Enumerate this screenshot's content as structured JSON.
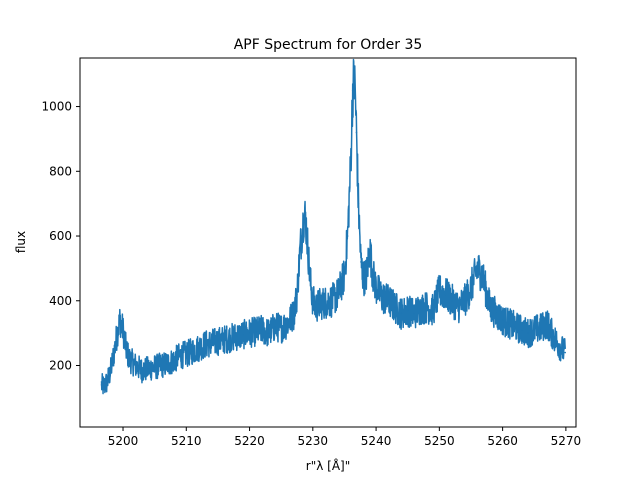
{
  "chart_data": {
    "type": "line",
    "title": "APF Spectrum for Order 35",
    "xlabel": "r\"λ [Å]\"",
    "ylabel": "flux",
    "xlim": [
      5193.2,
      5271.6
    ],
    "ylim": [
      10,
      1150
    ],
    "x_ticks": [
      5200,
      5210,
      5220,
      5230,
      5240,
      5250,
      5260,
      5270
    ],
    "x_tick_labels": [
      "5200",
      "5210",
      "5220",
      "5230",
      "5240",
      "5250",
      "5260",
      "5270"
    ],
    "y_ticks": [
      200,
      400,
      600,
      800,
      1000
    ],
    "y_tick_labels": [
      "200",
      "400",
      "600",
      "800",
      "1000"
    ],
    "grid": false,
    "line_color": "#1f77b4",
    "series": [
      {
        "x": [
          5196.6,
          5197.0,
          5197.5,
          5198.0,
          5198.5,
          5199.0,
          5199.5,
          5200.0,
          5200.5,
          5201.0,
          5202.0,
          5203.0,
          5204.0,
          5205.0,
          5206.0,
          5207.0,
          5208.0,
          5209.0,
          5210.0,
          5211.0,
          5212.0,
          5213.0,
          5214.0,
          5215.0,
          5216.0,
          5217.0,
          5218.0,
          5219.0,
          5220.0,
          5221.0,
          5222.0,
          5223.0,
          5224.0,
          5225.0,
          5226.0,
          5227.0,
          5227.5,
          5228.0,
          5228.5,
          5228.8,
          5229.0,
          5229.3,
          5229.6,
          5230.0,
          5230.5,
          5231.0,
          5232.0,
          5233.0,
          5234.0,
          5235.0,
          5235.5,
          5236.0,
          5236.3,
          5236.5,
          5236.7,
          5236.9,
          5237.2,
          5237.6,
          5238.0,
          5238.5,
          5239.0,
          5239.5,
          5240.0,
          5241.0,
          5242.0,
          5243.0,
          5244.0,
          5245.0,
          5246.0,
          5247.0,
          5248.0,
          5249.0,
          5250.0,
          5251.0,
          5252.0,
          5253.0,
          5254.0,
          5255.0,
          5256.0,
          5256.8,
          5257.5,
          5258.0,
          5259.0,
          5260.0,
          5261.0,
          5262.0,
          5263.0,
          5264.0,
          5265.0,
          5266.0,
          5267.0,
          5268.0,
          5269.0,
          5269.9
        ],
        "y": [
          140,
          135,
          150,
          180,
          230,
          290,
          340,
          310,
          250,
          220,
          200,
          185,
          190,
          195,
          200,
          205,
          215,
          230,
          235,
          245,
          255,
          265,
          270,
          275,
          280,
          285,
          290,
          295,
          300,
          305,
          310,
          300,
          320,
          315,
          330,
          360,
          420,
          560,
          650,
          660,
          620,
          540,
          460,
          400,
          380,
          390,
          395,
          400,
          420,
          480,
          600,
          830,
          1050,
          1080,
          1050,
          920,
          700,
          520,
          470,
          480,
          560,
          480,
          440,
          410,
          400,
          380,
          360,
          370,
          360,
          375,
          380,
          370,
          430,
          420,
          400,
          380,
          400,
          440,
          500,
          480,
          420,
          380,
          360,
          340,
          330,
          320,
          310,
          300,
          310,
          315,
          330,
          290,
          260,
          240
        ]
      }
    ]
  }
}
